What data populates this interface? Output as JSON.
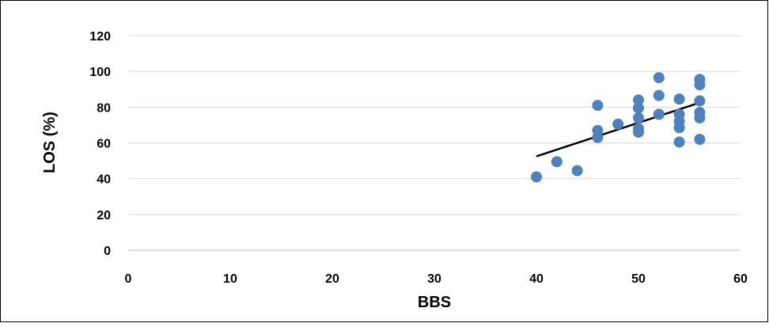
{
  "chart_data": {
    "type": "scatter",
    "title": "",
    "xlabel": "BBS",
    "ylabel": "LOS (%)",
    "xlim": [
      0,
      60
    ],
    "ylim": [
      0,
      120
    ],
    "x_ticks": [
      0,
      10,
      20,
      30,
      40,
      50,
      60
    ],
    "y_ticks": [
      0,
      20,
      40,
      60,
      80,
      100,
      120
    ],
    "grid": "horizontal",
    "legend": "none",
    "marker_color": "#4F81BD",
    "trendline_color": "#000000",
    "series": [
      {
        "points": [
          [
            40,
            41
          ],
          [
            42,
            49.5
          ],
          [
            44,
            44.5
          ],
          [
            46,
            81
          ],
          [
            46,
            67
          ],
          [
            46,
            63
          ],
          [
            48,
            70.5
          ],
          [
            50,
            84
          ],
          [
            50,
            79.5
          ],
          [
            50,
            74
          ],
          [
            50,
            68
          ],
          [
            50,
            66
          ],
          [
            52,
            96.5
          ],
          [
            52,
            86.5
          ],
          [
            52,
            76
          ],
          [
            54,
            84.5
          ],
          [
            54,
            76
          ],
          [
            54,
            72
          ],
          [
            54,
            68.5
          ],
          [
            54,
            60.5
          ],
          [
            56,
            95.5
          ],
          [
            56,
            92.5
          ],
          [
            56,
            83.5
          ],
          [
            56,
            77
          ],
          [
            56,
            74
          ],
          [
            56,
            62
          ]
        ]
      }
    ],
    "trendline": {
      "x": [
        40,
        56
      ],
      "y": [
        52.5,
        82.5
      ]
    }
  }
}
